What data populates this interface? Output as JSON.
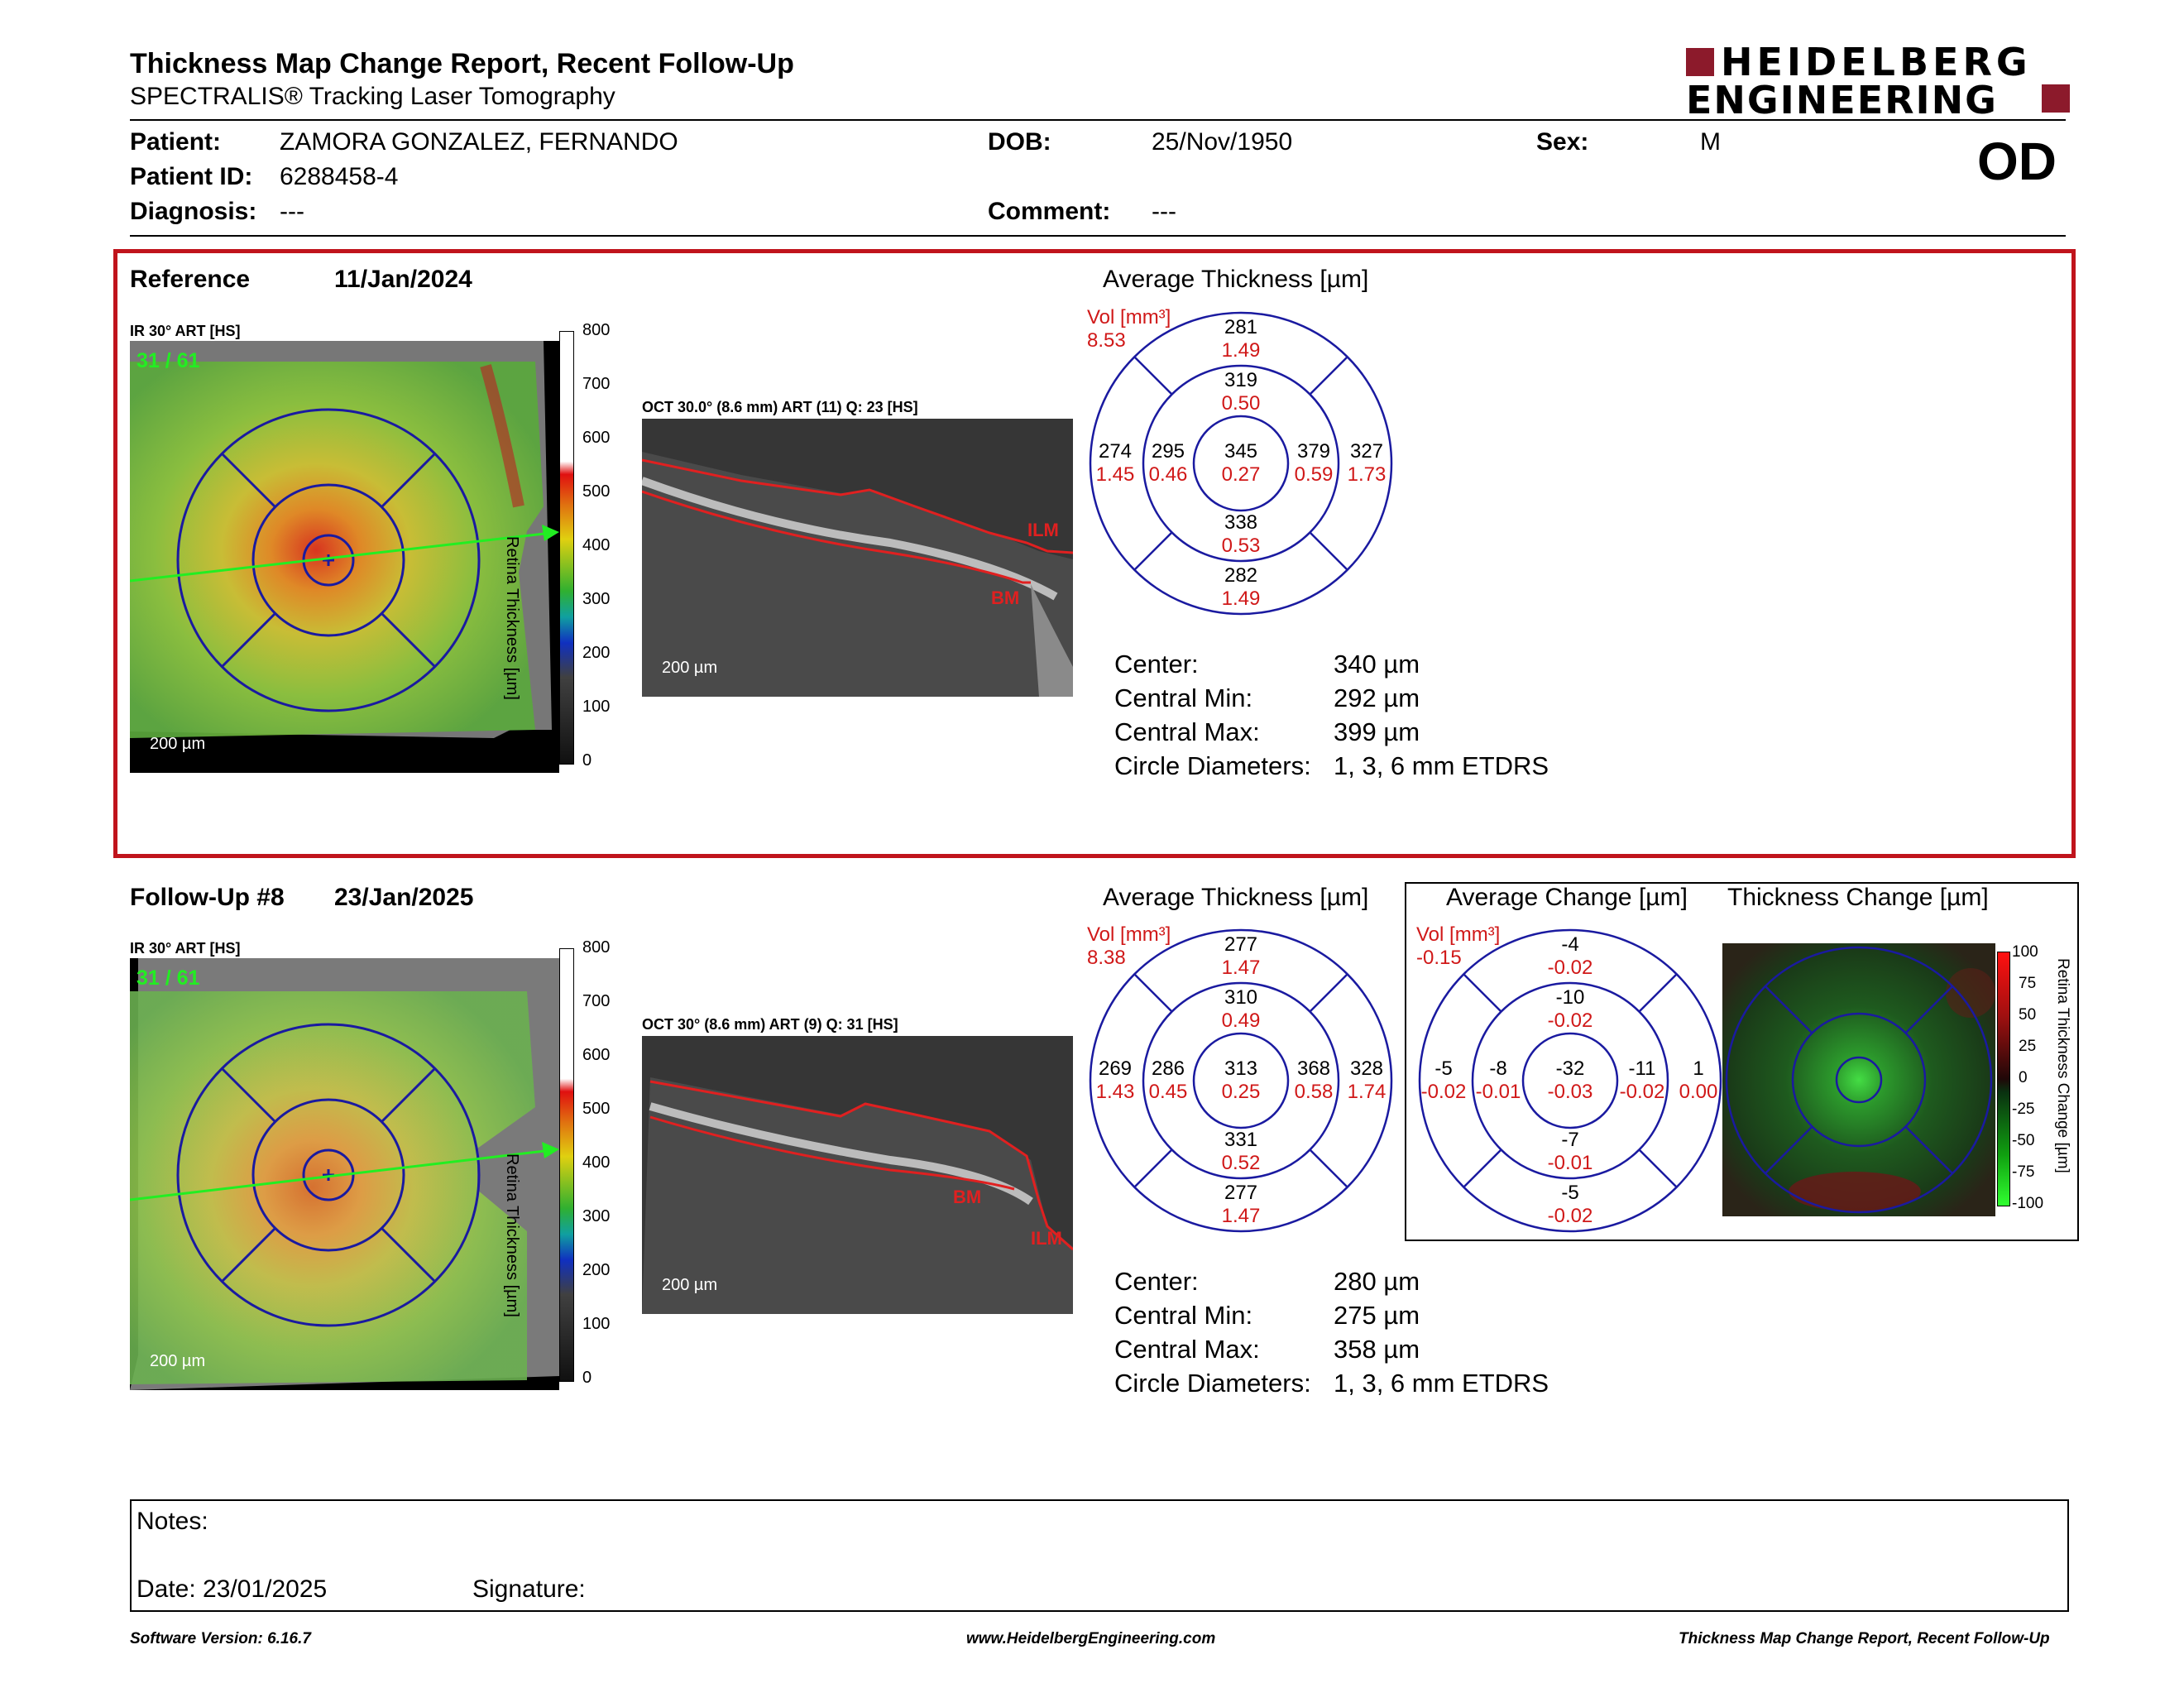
{
  "header": {
    "title": "Thickness Map Change Report, Recent Follow-Up",
    "subtitle": "SPECTRALIS® Tracking Laser Tomography",
    "logo_line1": "HEIDELBERG",
    "logo_line2": "ENGINEERING",
    "eye": "OD"
  },
  "patient": {
    "patient_label": "Patient:",
    "patient_value": "ZAMORA GONZALEZ, FERNANDO",
    "id_label": "Patient ID:",
    "id_value": "6288458-4",
    "diagnosis_label": "Diagnosis:",
    "diagnosis_value": "---",
    "dob_label": "DOB:",
    "dob_value": "25/Nov/1950",
    "comment_label": "Comment:",
    "comment_value": "---",
    "sex_label": "Sex:",
    "sex_value": "M"
  },
  "reference": {
    "label": "Reference",
    "date": "11/Jan/2024",
    "ir_label": "IR 30° ART [HS]",
    "frame_counter": "31 / 61",
    "scale_label": "200 µm",
    "colorbar_ticks": [
      "800",
      "700",
      "600",
      "500",
      "400",
      "300",
      "200",
      "100",
      "0"
    ],
    "colorbar_title": "Retina Thickness [µm]",
    "oct_label": "OCT 30.0° (8.6 mm) ART (11) Q: 23 [HS]",
    "oct_scale": "200 µm",
    "ilm": "ILM",
    "bm": "BM",
    "avg_title": "Average Thickness [µm]",
    "vol_label": "Vol [mm³]",
    "vol_value": "8.53",
    "sectors": {
      "outer_sup": [
        "281",
        "1.49"
      ],
      "inner_sup": [
        "319",
        "0.50"
      ],
      "outer_temp": [
        "274",
        "1.45"
      ],
      "inner_temp": [
        "295",
        "0.46"
      ],
      "center": [
        "345",
        "0.27"
      ],
      "inner_nasal": [
        "379",
        "0.59"
      ],
      "outer_nasal": [
        "327",
        "1.73"
      ],
      "inner_inf": [
        "338",
        "0.53"
      ],
      "outer_inf": [
        "282",
        "1.49"
      ]
    },
    "stats": {
      "center_label": "Center:",
      "center_value": "340 µm",
      "min_label": "Central Min:",
      "min_value": "292 µm",
      "max_label": "Central Max:",
      "max_value": "399 µm",
      "diam_label": "Circle Diameters:",
      "diam_value": "1, 3, 6 mm ETDRS"
    }
  },
  "followup": {
    "label": "Follow-Up #8",
    "date": "23/Jan/2025",
    "ir_label": "IR 30° ART [HS]",
    "frame_counter": "31 / 61",
    "scale_label": "200 µm",
    "colorbar_ticks": [
      "800",
      "700",
      "600",
      "500",
      "400",
      "300",
      "200",
      "100",
      "0"
    ],
    "colorbar_title": "Retina Thickness [µm]",
    "oct_label": "OCT 30° (8.6 mm) ART (9) Q: 31 [HS]",
    "oct_scale": "200 µm",
    "ilm": "ILM",
    "bm": "BM",
    "avg_title": "Average Thickness [µm]",
    "vol_label": "Vol [mm³]",
    "vol_value": "8.38",
    "sectors": {
      "outer_sup": [
        "277",
        "1.47"
      ],
      "inner_sup": [
        "310",
        "0.49"
      ],
      "outer_temp": [
        "269",
        "1.43"
      ],
      "inner_temp": [
        "286",
        "0.45"
      ],
      "center": [
        "313",
        "0.25"
      ],
      "inner_nasal": [
        "368",
        "0.58"
      ],
      "outer_nasal": [
        "328",
        "1.74"
      ],
      "inner_inf": [
        "331",
        "0.52"
      ],
      "outer_inf": [
        "277",
        "1.47"
      ]
    },
    "stats": {
      "center_label": "Center:",
      "center_value": "280 µm",
      "min_label": "Central Min:",
      "min_value": "275 µm",
      "max_label": "Central Max:",
      "max_value": "358 µm",
      "diam_label": "Circle Diameters:",
      "diam_value": "1, 3, 6 mm ETDRS"
    }
  },
  "change": {
    "avg_change_title": "Average Change [µm]",
    "thickness_change_title": "Thickness Change [µm]",
    "vol_label": "Vol [mm³]",
    "vol_value": "-0.15",
    "sectors": {
      "outer_sup": [
        "-4",
        "-0.02"
      ],
      "inner_sup": [
        "-10",
        "-0.02"
      ],
      "outer_temp": [
        "-5",
        "-0.02"
      ],
      "inner_temp": [
        "-8",
        "-0.01"
      ],
      "center": [
        "-32",
        "-0.03"
      ],
      "inner_nasal": [
        "-11",
        "-0.02"
      ],
      "outer_nasal": [
        "1",
        "0.00"
      ],
      "inner_inf": [
        "-7",
        "-0.01"
      ],
      "outer_inf": [
        "-5",
        "-0.02"
      ]
    },
    "colorbar_ticks": [
      "100",
      "75",
      "50",
      "25",
      "0",
      "-25",
      "-50",
      "-75",
      "-100"
    ],
    "colorbar_title": "Retina Thickness Change [µm]"
  },
  "notes": {
    "notes_label": "Notes:",
    "date_label": "Date: 23/01/2025",
    "signature_label": "Signature:"
  },
  "footer": {
    "software": "Software Version: 6.16.7",
    "url": "www.HeidelbergEngineering.com",
    "report": "Thickness Map Change Report, Recent Follow-Up"
  },
  "colors": {
    "brand_red": "#8c1a2b",
    "frame_red": "#c0141c",
    "etdrs_blue": "#1a1aa0",
    "value_red": "#d01818",
    "scan_green": "#22ee22"
  }
}
